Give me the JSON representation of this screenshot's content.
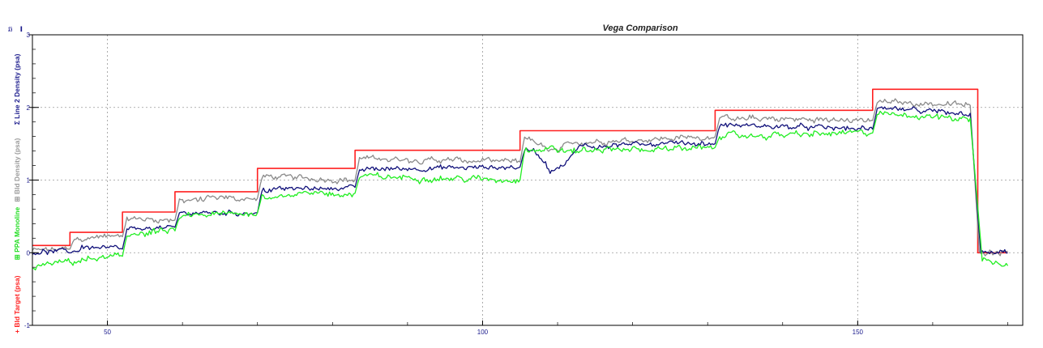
{
  "chart_data": {
    "type": "line",
    "title": "Vega Comparison",
    "corner_glyphs": [
      "ឆ",
      "I"
    ],
    "xlim": [
      40,
      172
    ],
    "ylim": [
      -1,
      3
    ],
    "x_ticks": [
      50,
      100,
      150
    ],
    "x_minor_step": 10,
    "y_ticks": [
      -1,
      0,
      1,
      2,
      3
    ],
    "y_minor_step": 0.2,
    "grid": true,
    "y_axis_labels": [
      {
        "text": "+ Bld Target (psa)",
        "color": "#ff2020"
      },
      {
        "text": "⊞ PPA Monoline",
        "color": "#22dd22"
      },
      {
        "text": "⊞ Bld Density (psa)",
        "color": "#9a9a9a"
      },
      {
        "text": "Σ Line 2 Density (psa)",
        "color": "#1a1a8c"
      }
    ],
    "series": [
      {
        "name": "Bld Target (psa)",
        "color": "#ff2020",
        "kind": "step",
        "x": [
          40,
          45,
          45,
          52,
          52,
          59,
          59,
          70,
          70,
          83,
          83,
          105,
          105,
          131,
          131,
          152,
          152,
          166,
          166,
          170
        ],
        "y": [
          0.1,
          0.1,
          0.28,
          0.28,
          0.56,
          0.56,
          0.84,
          0.84,
          1.16,
          1.16,
          1.41,
          1.41,
          1.68,
          1.68,
          1.96,
          1.96,
          2.25,
          2.25,
          0.0,
          0.0
        ]
      },
      {
        "name": "Bld Density (psa)",
        "color": "#8a8a8a",
        "kind": "noisy",
        "noise": 0.045,
        "x": [
          40,
          45,
          45.6,
          52,
          52.6,
          59,
          59.6,
          70,
          70.6,
          83,
          83.6,
          105,
          105.6,
          108,
          110,
          112,
          131,
          131.6,
          152,
          152.6,
          165,
          166.2,
          170
        ],
        "y": [
          0.03,
          0.05,
          0.2,
          0.22,
          0.47,
          0.45,
          0.73,
          0.75,
          1.05,
          1.0,
          1.3,
          1.25,
          1.6,
          1.45,
          1.4,
          1.52,
          1.6,
          1.85,
          1.82,
          2.08,
          2.03,
          0.02,
          0.02
        ]
      },
      {
        "name": "Line 2 Density (psa)",
        "color": "#10107a",
        "kind": "noisy",
        "noise": 0.04,
        "x": [
          40,
          46,
          46.6,
          52,
          52.6,
          59,
          59.6,
          70,
          70.6,
          83,
          83.6,
          105,
          105.6,
          107,
          109,
          111,
          113,
          131,
          131.6,
          152,
          152.6,
          165,
          166.4,
          170
        ],
        "y": [
          0.01,
          0.02,
          0.08,
          0.05,
          0.32,
          0.35,
          0.55,
          0.55,
          0.87,
          0.9,
          1.15,
          1.18,
          1.42,
          1.4,
          1.12,
          1.2,
          1.48,
          1.5,
          1.76,
          1.7,
          1.98,
          1.92,
          -0.01,
          0.0
        ]
      },
      {
        "name": "PPA Monoline",
        "color": "#22ee22",
        "kind": "noisy",
        "noise": 0.05,
        "x": [
          40,
          45,
          52,
          52.6,
          59,
          59.6,
          70,
          70.6,
          83,
          83.6,
          105,
          105.6,
          113,
          131,
          131.6,
          152,
          152.6,
          165,
          166.6,
          170
        ],
        "y": [
          -0.2,
          -0.12,
          -0.05,
          0.25,
          0.3,
          0.5,
          0.55,
          0.78,
          0.82,
          1.05,
          1.0,
          1.42,
          1.4,
          1.45,
          1.6,
          1.65,
          1.9,
          1.85,
          -0.1,
          -0.18
        ]
      }
    ]
  }
}
